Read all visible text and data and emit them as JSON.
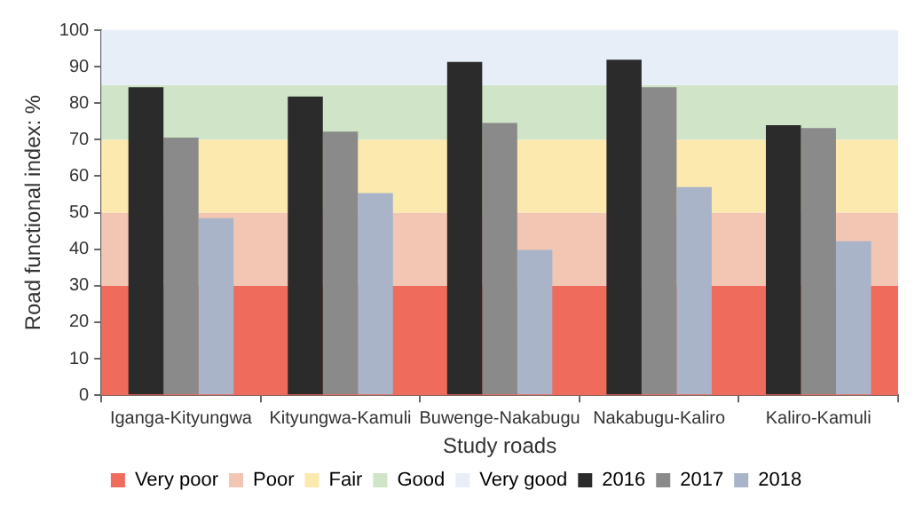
{
  "chart_data": {
    "type": "bar",
    "xlabel": "Study roads",
    "ylabel": "Road functional index: %",
    "categories": [
      "Iganga-Kityungwa",
      "Kityungwa-Kamuli",
      "Buwenge-Nakabugu",
      "Nakabugu-Kaliro",
      "Kaliro-Kamuli"
    ],
    "series": [
      {
        "name": "2016",
        "color": "#2b2b2b",
        "values": [
          84.4,
          81.8,
          91.3,
          91.9,
          74
        ]
      },
      {
        "name": "2017",
        "color": "#8a8a8a",
        "values": [
          70.6,
          72.2,
          74.6,
          84.4,
          73.2
        ]
      },
      {
        "name": "2018",
        "color": "#a9b4c8",
        "values": [
          48.5,
          55.4,
          39.8,
          57,
          42.2
        ]
      }
    ],
    "bands": [
      {
        "axis": "y",
        "from": 0,
        "to": 30,
        "label": "Very poor",
        "color": "#ef6b5c"
      },
      {
        "axis": "y",
        "from": 30,
        "to": 50,
        "label": "Poor",
        "color": "#f2c6b2"
      },
      {
        "axis": "y",
        "from": 50,
        "to": 70,
        "label": "Fair",
        "color": "#fbe9ae"
      },
      {
        "axis": "y",
        "from": 70,
        "to": 85,
        "label": "Good",
        "color": "#d0e5c8"
      },
      {
        "axis": "y",
        "from": 85,
        "to": 100,
        "label": "Very good",
        "color": "#e8eef8"
      }
    ],
    "ylim": [
      0,
      100
    ],
    "yticks": [
      0,
      10,
      20,
      30,
      40,
      50,
      60,
      70,
      80,
      90,
      100
    ],
    "grid": false,
    "legend": "bottom"
  }
}
